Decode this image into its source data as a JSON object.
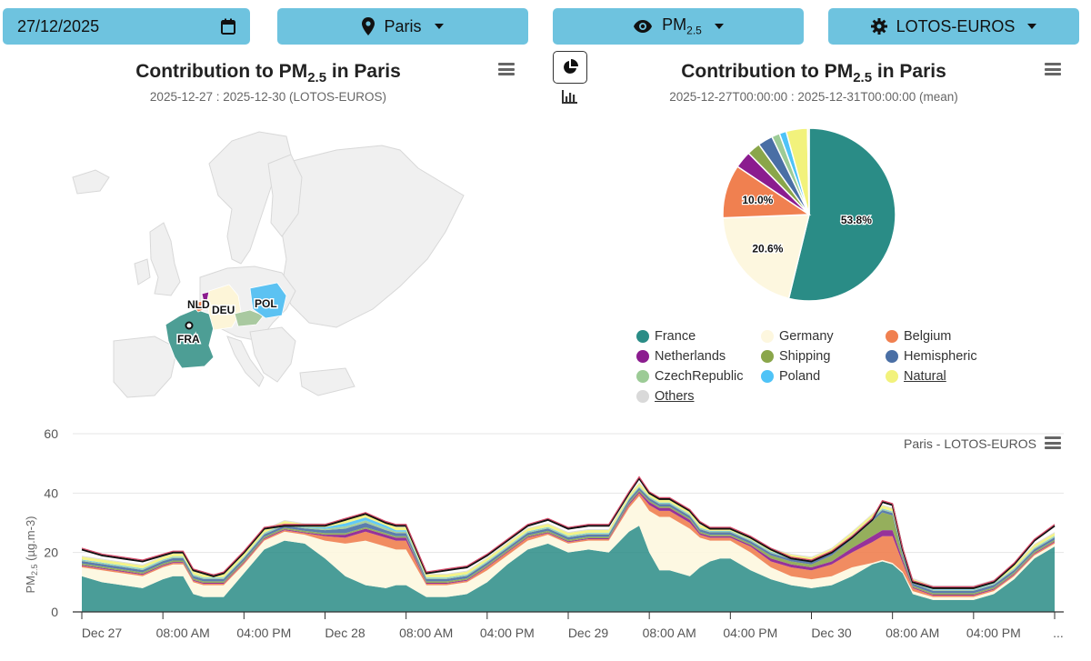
{
  "toolbar": {
    "date_value": "27/12/2025",
    "city_label": "Paris",
    "pollutant_label": "PM",
    "pollutant_sub": "2.5",
    "model_label": "LOTOS-EUROS"
  },
  "map_panel": {
    "title_prefix": "Contribution to PM",
    "title_sub": "2.5",
    "title_suffix": " in Paris",
    "subtitle": "2025-12-27 : 2025-12-30 (LOTOS-EUROS)",
    "country_labels": [
      "NLD",
      "DEU",
      "POL",
      "FRA"
    ]
  },
  "pie_panel": {
    "title_prefix": "Contribution to PM",
    "title_sub": "2.5",
    "title_suffix": " in Paris",
    "subtitle": "2025-12-27T00:00:00 : 2025-12-31T00:00:00 (mean)"
  },
  "area_panel": {
    "caption": "Paris - LOTOS-EUROS",
    "ylabel_prefix": "PM",
    "ylabel_sub": "2.5",
    "ylabel_suffix": " (µg.m-3)"
  },
  "colors": {
    "France": "#2a8c86",
    "Germany": "#fdf7df",
    "Belgium": "#f08050",
    "Netherlands": "#8b1c8f",
    "Shipping": "#8aa64a",
    "Hemispheric": "#4a6fa5",
    "CzechRepublic": "#9ccb96",
    "Poland": "#4fc3f7",
    "Natural": "#f2f27c",
    "Others": "#d9d9d9"
  },
  "chart_data": [
    {
      "type": "pie",
      "title": "Contribution to PM2.5 in Paris",
      "subtitle": "2025-12-27T00:00:00 : 2025-12-31T00:00:00 (mean)",
      "slices": [
        {
          "name": "France",
          "value": 53.8,
          "label": "53.8%"
        },
        {
          "name": "Germany",
          "value": 20.6,
          "label": "20.6%"
        },
        {
          "name": "Belgium",
          "value": 10.0,
          "label": "10.0%"
        },
        {
          "name": "Netherlands",
          "value": 3.2,
          "label": ""
        },
        {
          "name": "Shipping",
          "value": 2.5,
          "label": ""
        },
        {
          "name": "Hemispheric",
          "value": 2.8,
          "label": ""
        },
        {
          "name": "CzechRepublic",
          "value": 1.5,
          "label": ""
        },
        {
          "name": "Poland",
          "value": 1.3,
          "label": ""
        },
        {
          "name": "Natural",
          "value": 4.0,
          "label": ""
        },
        {
          "name": "Others",
          "value": 0.3,
          "label": ""
        }
      ],
      "legend": [
        "France",
        "Germany",
        "Belgium",
        "Netherlands",
        "Shipping",
        "Hemispheric",
        "CzechRepublic",
        "Poland",
        "Natural",
        "Others"
      ],
      "legend_hidden": [
        "Natural",
        "Others"
      ]
    },
    {
      "type": "area",
      "title": "Paris - LOTOS-EUROS",
      "ylabel": "PM2.5 (µg.m-3)",
      "ylim": [
        0,
        60
      ],
      "yticks": [
        0,
        20,
        40,
        60
      ],
      "xlim": [
        0,
        96
      ],
      "xticks": [
        {
          "x": 0,
          "label": "Dec 27"
        },
        {
          "x": 8,
          "label": "08:00 AM"
        },
        {
          "x": 16,
          "label": "04:00 PM"
        },
        {
          "x": 24,
          "label": "Dec 28"
        },
        {
          "x": 32,
          "label": "08:00 AM"
        },
        {
          "x": 40,
          "label": "04:00 PM"
        },
        {
          "x": 48,
          "label": "Dec 29"
        },
        {
          "x": 56,
          "label": "08:00 AM"
        },
        {
          "x": 64,
          "label": "04:00 PM"
        },
        {
          "x": 72,
          "label": "Dec 30"
        },
        {
          "x": 80,
          "label": "08:00 AM"
        },
        {
          "x": 88,
          "label": "04:00 PM"
        },
        {
          "x": 96,
          "label": "..."
        }
      ],
      "x": [
        0,
        2,
        4,
        6,
        8,
        9,
        10,
        11,
        12,
        13,
        14,
        16,
        18,
        20,
        22,
        24,
        26,
        28,
        30,
        31,
        32,
        34,
        36,
        38,
        40,
        42,
        44,
        46,
        48,
        50,
        52,
        54,
        55,
        56,
        57,
        58,
        60,
        61,
        62,
        63,
        64,
        66,
        68,
        70,
        72,
        74,
        76,
        78,
        79,
        80,
        81,
        82,
        84,
        86,
        88,
        90,
        92,
        94,
        96
      ],
      "series": [
        {
          "name": "France",
          "values": [
            12,
            10,
            9,
            8,
            11,
            12,
            12,
            6,
            5,
            5,
            5,
            13,
            21,
            24,
            23,
            18,
            12,
            9,
            8,
            9,
            9,
            5,
            5,
            6,
            10,
            16,
            21,
            23,
            20,
            21,
            20,
            27,
            29,
            20,
            14,
            14,
            12,
            15,
            17,
            18,
            18,
            14,
            11,
            9,
            8,
            9,
            12,
            16,
            17,
            16,
            13,
            6,
            4,
            4,
            4,
            6,
            11,
            18,
            22
          ]
        },
        {
          "name": "Germany",
          "values": [
            3,
            4,
            4,
            4,
            4,
            4,
            4,
            4,
            4,
            4,
            4,
            3,
            3,
            3,
            3,
            6,
            11,
            15,
            14,
            12,
            12,
            4,
            4,
            4,
            4,
            3,
            3,
            3,
            3,
            3,
            4,
            8,
            10,
            14,
            18,
            18,
            16,
            10,
            7,
            6,
            6,
            6,
            4,
            3,
            3,
            3,
            3,
            0.5,
            0.5,
            0.5,
            0.5,
            1,
            1,
            1,
            1,
            1,
            1,
            1,
            1
          ]
        },
        {
          "name": "Belgium",
          "values": [
            0.5,
            0.5,
            0.5,
            0.5,
            0.5,
            0.5,
            0.5,
            0.5,
            0.5,
            0.5,
            0.5,
            0.5,
            0.5,
            0.5,
            0.5,
            1.5,
            2,
            3,
            3,
            3,
            3,
            0.5,
            0.5,
            0.5,
            1,
            1,
            1,
            0.5,
            0.5,
            0.5,
            0.5,
            1,
            1,
            2,
            2,
            2,
            2,
            1,
            1,
            1,
            1,
            2,
            2,
            3,
            3,
            4,
            5,
            7,
            8,
            9,
            3,
            1,
            0.5,
            0.5,
            0.5,
            0.5,
            0.5,
            0.5,
            0.5
          ]
        },
        {
          "name": "Netherlands",
          "values": [
            0.3,
            0.3,
            0.3,
            0.3,
            0.3,
            0.3,
            0.3,
            0.3,
            0.3,
            0.3,
            0.3,
            0.3,
            0.3,
            0.3,
            0.3,
            0.5,
            1,
            1,
            1,
            1,
            1,
            0.3,
            0.3,
            0.3,
            0.3,
            0.3,
            0.3,
            0.3,
            0.3,
            0.3,
            0.3,
            0.5,
            0.5,
            1,
            1,
            1,
            1,
            0.5,
            0.5,
            0.5,
            0.5,
            0.5,
            1,
            1,
            1,
            1,
            1.5,
            2,
            2,
            2,
            1,
            0.3,
            0.3,
            0.3,
            0.3,
            0.3,
            0.3,
            0.3,
            0.3
          ]
        },
        {
          "name": "Shipping",
          "values": [
            0.5,
            0.5,
            0.5,
            0.5,
            0.5,
            0.5,
            0.5,
            0.5,
            0.5,
            0.5,
            0.5,
            0.5,
            0.5,
            0.5,
            0.5,
            0.5,
            0.5,
            0.5,
            0.5,
            0.5,
            0.5,
            0.5,
            0.5,
            0.5,
            0.5,
            0.5,
            0.5,
            0.5,
            0.5,
            0.5,
            0.5,
            0.5,
            0.5,
            0.5,
            0.5,
            0.5,
            0.5,
            0.5,
            0.5,
            0.5,
            0.5,
            0.5,
            1,
            1,
            1,
            2,
            3,
            5,
            6,
            5,
            1,
            0.5,
            0.5,
            0.5,
            0.5,
            0.5,
            0.5,
            0.5,
            0.5
          ]
        },
        {
          "name": "Hemispheric",
          "values": [
            0.8,
            0.8,
            0.8,
            0.8,
            0.8,
            0.8,
            0.8,
            0.8,
            0.8,
            0.8,
            0.8,
            0.8,
            0.8,
            0.8,
            0.8,
            1,
            1.5,
            1.5,
            1,
            1,
            1,
            0.8,
            0.8,
            0.8,
            0.8,
            0.8,
            0.8,
            0.8,
            0.8,
            0.8,
            0.8,
            0.8,
            0.8,
            0.8,
            0.8,
            0.8,
            0.8,
            0.8,
            0.8,
            0.8,
            0.8,
            0.8,
            0.8,
            0.8,
            0.8,
            0.8,
            0.8,
            0.8,
            0.8,
            0.8,
            0.8,
            0.8,
            0.8,
            0.8,
            0.8,
            0.8,
            0.8,
            0.8,
            0.8
          ]
        },
        {
          "name": "CzechRepublic",
          "values": [
            0.3,
            0.3,
            0.3,
            0.3,
            0.3,
            0.3,
            0.3,
            0.3,
            0.3,
            0.3,
            0.3,
            0.3,
            0.3,
            0.3,
            0.3,
            0.5,
            0.8,
            0.8,
            0.8,
            0.5,
            0.5,
            0.3,
            0.3,
            0.3,
            0.3,
            0.3,
            0.3,
            0.3,
            0.3,
            0.3,
            0.3,
            0.3,
            0.3,
            0.3,
            0.3,
            0.3,
            0.3,
            0.3,
            0.3,
            0.3,
            0.3,
            0.3,
            0.3,
            0.3,
            0.3,
            0.3,
            0.3,
            0.3,
            0.3,
            0.3,
            0.3,
            0.3,
            0.3,
            0.3,
            0.3,
            0.3,
            0.3,
            0.3,
            0.3
          ]
        },
        {
          "name": "Poland",
          "values": [
            0.2,
            0.2,
            0.2,
            0.2,
            0.2,
            0.2,
            0.2,
            0.2,
            0.2,
            0.2,
            0.2,
            0.2,
            0.2,
            0.2,
            0.2,
            0.5,
            1,
            1,
            0.8,
            0.5,
            0.5,
            0.2,
            0.2,
            0.2,
            0.2,
            0.2,
            0.2,
            0.2,
            0.2,
            0.2,
            0.2,
            0.2,
            0.2,
            0.2,
            0.2,
            0.2,
            0.2,
            0.2,
            0.2,
            0.2,
            0.2,
            0.2,
            0.2,
            0.2,
            0.2,
            0.2,
            0.2,
            0.2,
            0.2,
            0.2,
            0.2,
            0.2,
            0.2,
            0.2,
            0.2,
            0.2,
            0.2,
            0.2,
            0.2
          ]
        },
        {
          "name": "Natural",
          "values": [
            1,
            1,
            1,
            1,
            1,
            1,
            1,
            1,
            1,
            1,
            1,
            1,
            1,
            1,
            1,
            1,
            1,
            1,
            1,
            1,
            1,
            1,
            1,
            1,
            1,
            1,
            1,
            1,
            1,
            1,
            1,
            1,
            1,
            1,
            1,
            1,
            1,
            1,
            1,
            1,
            1,
            1,
            1,
            1,
            1,
            1,
            1,
            1,
            1,
            1,
            1,
            1,
            1,
            1,
            1,
            1,
            1,
            1,
            1
          ]
        },
        {
          "name": "Others",
          "values": [
            0.3,
            0.3,
            0.3,
            0.3,
            0.3,
            0.3,
            0.3,
            0.3,
            0.3,
            0.3,
            0.3,
            0.3,
            0.3,
            0.3,
            0.3,
            0.3,
            0.3,
            0.3,
            0.3,
            0.3,
            0.3,
            0.3,
            0.3,
            0.3,
            0.3,
            0.3,
            0.3,
            0.3,
            0.3,
            0.3,
            0.3,
            0.3,
            0.3,
            0.3,
            0.3,
            0.3,
            0.3,
            0.3,
            0.3,
            0.3,
            0.3,
            0.3,
            0.3,
            0.3,
            0.3,
            0.3,
            0.3,
            0.3,
            0.3,
            0.3,
            0.3,
            0.3,
            0.3,
            0.3,
            0.3,
            0.3,
            0.3,
            0.3,
            0.3
          ]
        }
      ],
      "total": [
        21,
        19,
        18,
        17,
        19,
        20,
        20,
        14,
        13,
        12,
        13,
        20,
        28,
        29,
        29,
        29,
        31,
        33,
        30,
        29,
        29,
        13,
        14,
        15,
        19,
        24,
        29,
        31,
        28,
        29,
        29,
        40,
        45,
        40,
        38,
        38,
        34,
        30,
        28,
        28,
        28,
        25,
        21,
        18,
        17,
        20,
        25,
        31,
        37,
        36,
        21,
        10,
        8,
        8,
        8,
        10,
        16,
        24,
        29
      ]
    }
  ]
}
